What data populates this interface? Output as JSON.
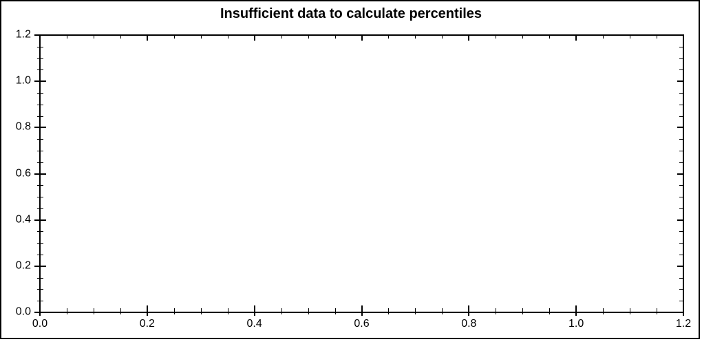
{
  "chart_data": {
    "type": "scatter",
    "title": "Insufficient data to calculate percentiles",
    "series": [],
    "x_tick_labels": [
      "0.0",
      "0.2",
      "0.4",
      "0.6",
      "0.8",
      "1.0",
      "1.2"
    ],
    "y_tick_labels": [
      "0.0",
      "0.2",
      "0.4",
      "0.6",
      "0.8",
      "1.0",
      "1.2"
    ],
    "xlim": [
      0.0,
      1.2
    ],
    "ylim": [
      0.0,
      1.2
    ],
    "x_major_ticks": [
      0.0,
      0.2,
      0.4,
      0.6,
      0.8,
      1.0,
      1.2
    ],
    "y_major_ticks": [
      0.0,
      0.2,
      0.4,
      0.6,
      0.8,
      1.0,
      1.2
    ],
    "minor_tick_interval": 0.05,
    "grid": false,
    "legend": "none"
  },
  "colors": {
    "axis": "#000000",
    "text": "#000000",
    "background": "#ffffff"
  }
}
